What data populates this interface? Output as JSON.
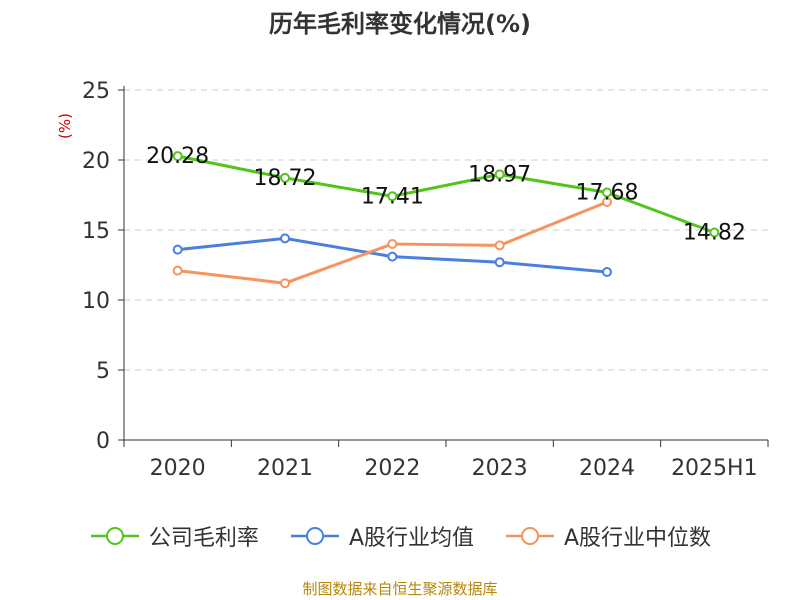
{
  "chart_data": {
    "type": "line",
    "title": "历年毛利率变化情况(%)",
    "ylabel": "(%)",
    "categories": [
      "2020",
      "2021",
      "2022",
      "2023",
      "2024",
      "2025H1"
    ],
    "ylim": [
      0,
      25
    ],
    "yticks": [
      0,
      5,
      10,
      15,
      20,
      25
    ],
    "grid": true,
    "legend_position": "bottom",
    "series": [
      {
        "name": "公司毛利率",
        "color": "#52C41A",
        "values": [
          20.28,
          18.72,
          17.41,
          18.97,
          17.68,
          14.82
        ],
        "labels": [
          "20.28",
          "18.72",
          "17.41",
          "18.97",
          "17.68",
          "14.82"
        ],
        "show_labels": true
      },
      {
        "name": "A股行业均值",
        "color": "#4A7FE0",
        "values": [
          13.6,
          14.4,
          13.1,
          12.7,
          12.0,
          null
        ],
        "show_labels": false
      },
      {
        "name": "A股行业中位数",
        "color": "#F59460",
        "values": [
          12.1,
          11.2,
          14.0,
          13.9,
          17.0,
          null
        ],
        "show_labels": false
      }
    ]
  },
  "source_text": "制图数据来自恒生聚源数据库"
}
